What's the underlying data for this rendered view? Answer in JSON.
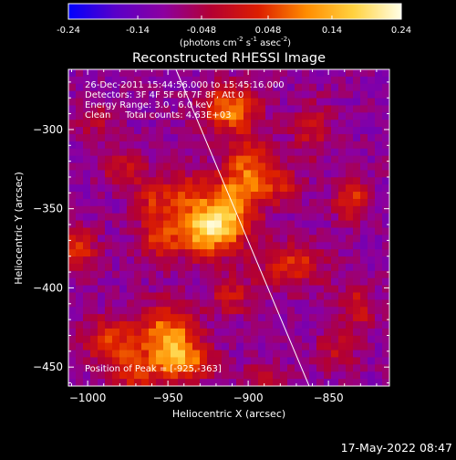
{
  "colorbar": {
    "ticks": [
      "-0.24",
      "-0.14",
      "-0.048",
      "0.048",
      "0.14",
      "0.24"
    ],
    "tick_values": [
      -0.24,
      -0.14,
      -0.048,
      0.048,
      0.14,
      0.24
    ],
    "range": [
      -0.24,
      0.24
    ],
    "colors": [
      "#0000ff",
      "#5a00c8",
      "#8c00a0",
      "#b40032",
      "#dc1e00",
      "#ff8c00",
      "#ffd240",
      "#ffffe6"
    ],
    "units_prefix": "(photons cm",
    "units_exp1": "-2",
    "units_s": " s",
    "units_exp2": "-1",
    "units_asec": " asec",
    "units_exp3": "-2",
    "units_suffix": ")"
  },
  "image": {
    "title": "Reconstructed RHESSI Image",
    "annotations": [
      "26-Dec-2011 15:44:56.000 to 15:45:16.000",
      "Detectors: 3F 4F 5F 6F 7F 8F, Att 0",
      "Energy Range: 3.0 - 6.0 keV",
      "Clean     Total counts: 4.63E+03"
    ],
    "peak_label": "Position of Peak = [-925,-363]",
    "timestamp": "17-May-2022 08:47"
  },
  "chart_data": {
    "type": "heatmap",
    "title": "Reconstructed RHESSI Image",
    "xlabel": "Heliocentric X (arcsec)",
    "ylabel": "Heliocentric Y (arcsec)",
    "xlim": [
      -1012,
      -812
    ],
    "ylim": [
      -462,
      -262
    ],
    "xticks": [
      -1000,
      -950,
      -900,
      -850
    ],
    "yticks": [
      -450,
      -400,
      -350,
      -300
    ],
    "xtick_labels": [
      "−1000",
      "−950",
      "−900",
      "−850"
    ],
    "ytick_labels": [
      "−450",
      "−400",
      "−350",
      "−300"
    ],
    "value_range": [
      -0.24,
      0.24
    ],
    "peak_position": [
      -925,
      -363
    ],
    "limb_line": [
      [
        -945,
        -262
      ],
      [
        -862,
        -462
      ]
    ],
    "sources": [
      {
        "x": -925,
        "y": -363,
        "amp": 0.26,
        "sx": 14,
        "sy": 12
      },
      {
        "x": -940,
        "y": -340,
        "amp": 0.12,
        "sx": 10,
        "sy": 10
      },
      {
        "x": -910,
        "y": -347,
        "amp": 0.16,
        "sx": 11,
        "sy": 13
      },
      {
        "x": -900,
        "y": -323,
        "amp": 0.15,
        "sx": 11,
        "sy": 14
      },
      {
        "x": -880,
        "y": -335,
        "amp": 0.1,
        "sx": 10,
        "sy": 9
      },
      {
        "x": -912,
        "y": -287,
        "amp": 0.2,
        "sx": 12,
        "sy": 10
      },
      {
        "x": -860,
        "y": -300,
        "amp": 0.1,
        "sx": 9,
        "sy": 12
      },
      {
        "x": -873,
        "y": -385,
        "amp": 0.14,
        "sx": 14,
        "sy": 10
      },
      {
        "x": -955,
        "y": -368,
        "amp": 0.12,
        "sx": 10,
        "sy": 10
      },
      {
        "x": -960,
        "y": -345,
        "amp": 0.1,
        "sx": 8,
        "sy": 9
      },
      {
        "x": -978,
        "y": -325,
        "amp": 0.1,
        "sx": 10,
        "sy": 8
      },
      {
        "x": -950,
        "y": -430,
        "amp": 0.2,
        "sx": 13,
        "sy": 14
      },
      {
        "x": -940,
        "y": -447,
        "amp": 0.16,
        "sx": 12,
        "sy": 9
      },
      {
        "x": -985,
        "y": -435,
        "amp": 0.14,
        "sx": 12,
        "sy": 11
      },
      {
        "x": -970,
        "y": -455,
        "amp": 0.12,
        "sx": 10,
        "sy": 8
      },
      {
        "x": -910,
        "y": -405,
        "amp": 0.1,
        "sx": 10,
        "sy": 9
      },
      {
        "x": -1006,
        "y": -375,
        "amp": 0.14,
        "sx": 8,
        "sy": 10
      },
      {
        "x": -835,
        "y": -345,
        "amp": 0.14,
        "sx": 8,
        "sy": 9
      },
      {
        "x": -832,
        "y": -412,
        "amp": 0.11,
        "sx": 8,
        "sy": 10
      },
      {
        "x": -845,
        "y": -440,
        "amp": 0.08,
        "sx": 9,
        "sy": 9
      },
      {
        "x": -995,
        "y": -295,
        "amp": 0.07,
        "sx": 9,
        "sy": 8
      },
      {
        "x": -890,
        "y": -455,
        "amp": 0.07,
        "sx": 10,
        "sy": 7
      }
    ],
    "background": -0.1
  }
}
